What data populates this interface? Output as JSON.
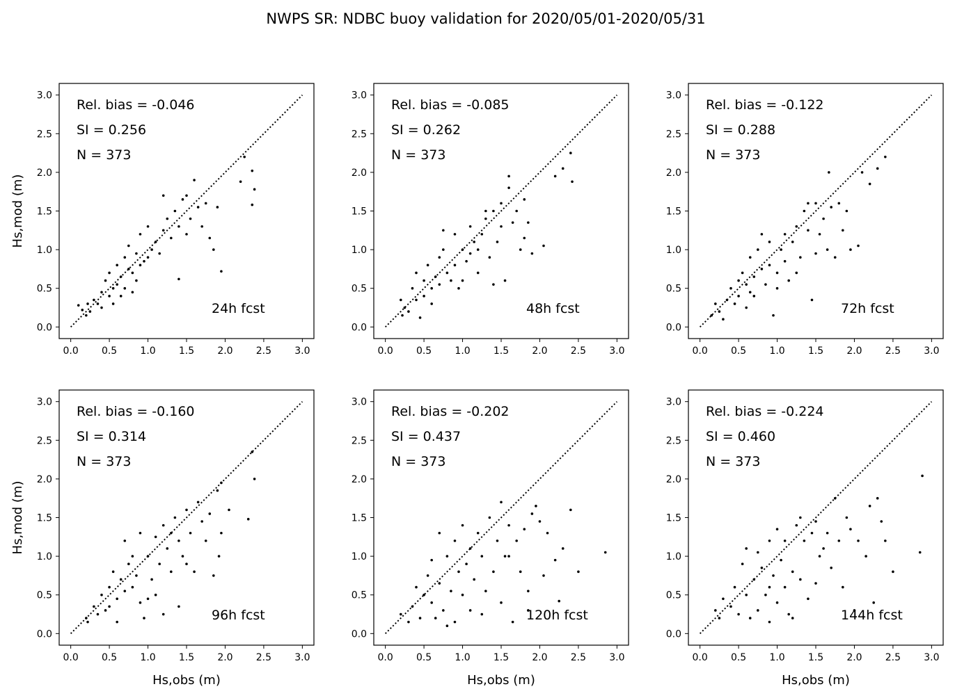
{
  "title": "NWPS SR: NDBC buoy validation for 2020/05/01-2020/05/31",
  "chart_data": [
    {
      "type": "scatter",
      "label": "24h fcst",
      "rel_bias": "Rel. bias = -0.046",
      "si": "SI =  0.256",
      "n": "N = 373",
      "xlabel": "",
      "ylabel": "Hs,mod (m)",
      "xlim": [
        -0.15,
        3.15
      ],
      "ylim": [
        -0.15,
        3.15
      ],
      "points": [
        [
          0.1,
          0.28
        ],
        [
          0.15,
          0.22
        ],
        [
          0.2,
          0.15
        ],
        [
          0.22,
          0.3
        ],
        [
          0.25,
          0.2
        ],
        [
          0.3,
          0.35
        ],
        [
          0.35,
          0.3
        ],
        [
          0.4,
          0.45
        ],
        [
          0.4,
          0.25
        ],
        [
          0.45,
          0.6
        ],
        [
          0.5,
          0.4
        ],
        [
          0.5,
          0.7
        ],
        [
          0.55,
          0.5
        ],
        [
          0.6,
          0.8
        ],
        [
          0.6,
          0.55
        ],
        [
          0.65,
          0.65
        ],
        [
          0.7,
          0.9
        ],
        [
          0.7,
          0.5
        ],
        [
          0.75,
          0.75
        ],
        [
          0.75,
          1.05
        ],
        [
          0.8,
          0.7
        ],
        [
          0.8,
          0.45
        ],
        [
          0.85,
          0.95
        ],
        [
          0.9,
          0.8
        ],
        [
          0.9,
          1.2
        ],
        [
          0.95,
          0.85
        ],
        [
          1.0,
          1.3
        ],
        [
          1.0,
          0.9
        ],
        [
          1.05,
          1.0
        ],
        [
          1.1,
          1.1
        ],
        [
          1.15,
          0.95
        ],
        [
          1.2,
          1.25
        ],
        [
          1.25,
          1.4
        ],
        [
          1.3,
          1.15
        ],
        [
          1.35,
          1.5
        ],
        [
          1.4,
          1.3
        ],
        [
          1.4,
          0.62
        ],
        [
          1.5,
          1.7
        ],
        [
          1.55,
          1.4
        ],
        [
          1.6,
          1.9
        ],
        [
          1.65,
          1.55
        ],
        [
          1.7,
          1.3
        ],
        [
          1.75,
          1.6
        ],
        [
          1.8,
          1.15
        ],
        [
          1.85,
          1.0
        ],
        [
          1.9,
          1.55
        ],
        [
          1.95,
          0.72
        ],
        [
          2.2,
          1.88
        ],
        [
          2.25,
          2.2
        ],
        [
          2.35,
          2.02
        ],
        [
          2.38,
          1.78
        ],
        [
          2.35,
          1.58
        ],
        [
          0.55,
          0.3
        ],
        [
          0.65,
          0.4
        ],
        [
          0.85,
          0.6
        ],
        [
          1.2,
          1.7
        ],
        [
          1.5,
          1.2
        ],
        [
          1.45,
          1.65
        ]
      ]
    },
    {
      "type": "scatter",
      "label": "48h fcst",
      "rel_bias": "Rel. bias = -0.085",
      "si": "SI =  0.262",
      "n": "N = 373",
      "xlabel": "",
      "ylabel": "",
      "xlim": [
        -0.15,
        3.15
      ],
      "ylim": [
        -0.15,
        3.15
      ],
      "points": [
        [
          0.2,
          0.35
        ],
        [
          0.22,
          0.15
        ],
        [
          0.25,
          0.25
        ],
        [
          0.3,
          0.2
        ],
        [
          0.35,
          0.5
        ],
        [
          0.4,
          0.35
        ],
        [
          0.4,
          0.7
        ],
        [
          0.45,
          0.12
        ],
        [
          0.5,
          0.6
        ],
        [
          0.5,
          0.4
        ],
        [
          0.55,
          0.8
        ],
        [
          0.6,
          0.5
        ],
        [
          0.6,
          0.3
        ],
        [
          0.65,
          0.65
        ],
        [
          0.7,
          0.9
        ],
        [
          0.7,
          0.55
        ],
        [
          0.75,
          1.0
        ],
        [
          0.8,
          0.7
        ],
        [
          0.85,
          0.6
        ],
        [
          0.9,
          1.2
        ],
        [
          0.9,
          0.8
        ],
        [
          0.95,
          0.5
        ],
        [
          1.0,
          1.0
        ],
        [
          1.05,
          0.85
        ],
        [
          1.1,
          1.3
        ],
        [
          1.1,
          0.95
        ],
        [
          1.15,
          1.1
        ],
        [
          1.2,
          0.7
        ],
        [
          1.25,
          1.2
        ],
        [
          1.3,
          1.4
        ],
        [
          1.35,
          0.9
        ],
        [
          1.4,
          1.5
        ],
        [
          1.45,
          1.1
        ],
        [
          1.5,
          1.6
        ],
        [
          1.5,
          1.3
        ],
        [
          1.55,
          0.6
        ],
        [
          1.6,
          1.8
        ],
        [
          1.65,
          1.35
        ],
        [
          1.7,
          1.5
        ],
        [
          1.75,
          1.0
        ],
        [
          1.8,
          1.65
        ],
        [
          1.85,
          1.35
        ],
        [
          1.9,
          0.95
        ],
        [
          2.05,
          1.05
        ],
        [
          2.2,
          1.95
        ],
        [
          2.3,
          2.05
        ],
        [
          2.4,
          2.25
        ],
        [
          2.42,
          1.88
        ],
        [
          1.4,
          0.55
        ],
        [
          0.75,
          1.25
        ],
        [
          1.0,
          0.6
        ],
        [
          1.2,
          1.0
        ],
        [
          1.3,
          1.5
        ],
        [
          1.6,
          1.95
        ],
        [
          1.8,
          1.15
        ]
      ]
    },
    {
      "type": "scatter",
      "label": "72h fcst",
      "rel_bias": "Rel. bias = -0.122",
      "si": "SI =  0.288",
      "n": "N = 373",
      "xlabel": "",
      "ylabel": "",
      "xlim": [
        -0.15,
        3.15
      ],
      "ylim": [
        -0.15,
        3.15
      ],
      "points": [
        [
          0.15,
          0.15
        ],
        [
          0.2,
          0.3
        ],
        [
          0.25,
          0.2
        ],
        [
          0.3,
          0.1
        ],
        [
          0.35,
          0.35
        ],
        [
          0.4,
          0.5
        ],
        [
          0.45,
          0.3
        ],
        [
          0.5,
          0.6
        ],
        [
          0.5,
          0.4
        ],
        [
          0.55,
          0.7
        ],
        [
          0.6,
          0.55
        ],
        [
          0.6,
          0.25
        ],
        [
          0.65,
          0.9
        ],
        [
          0.7,
          0.65
        ],
        [
          0.7,
          0.4
        ],
        [
          0.75,
          1.0
        ],
        [
          0.8,
          0.75
        ],
        [
          0.85,
          0.55
        ],
        [
          0.9,
          1.1
        ],
        [
          0.9,
          0.8
        ],
        [
          0.95,
          0.15
        ],
        [
          1.0,
          0.7
        ],
        [
          1.05,
          1.0
        ],
        [
          1.1,
          0.85
        ],
        [
          1.1,
          1.2
        ],
        [
          1.15,
          0.6
        ],
        [
          1.2,
          1.1
        ],
        [
          1.25,
          1.3
        ],
        [
          1.3,
          0.9
        ],
        [
          1.35,
          1.5
        ],
        [
          1.4,
          1.25
        ],
        [
          1.45,
          0.35
        ],
        [
          1.5,
          1.6
        ],
        [
          1.55,
          1.2
        ],
        [
          1.6,
          1.4
        ],
        [
          1.65,
          1.0
        ],
        [
          1.7,
          1.55
        ],
        [
          1.75,
          0.9
        ],
        [
          1.8,
          1.6
        ],
        [
          1.85,
          1.25
        ],
        [
          1.9,
          1.5
        ],
        [
          1.95,
          1.0
        ],
        [
          2.05,
          1.05
        ],
        [
          2.1,
          2.0
        ],
        [
          2.2,
          1.85
        ],
        [
          2.3,
          2.05
        ],
        [
          2.4,
          2.2
        ],
        [
          1.67,
          2.0
        ],
        [
          1.5,
          0.95
        ],
        [
          0.8,
          1.2
        ],
        [
          1.0,
          0.5
        ],
        [
          1.25,
          0.7
        ],
        [
          1.4,
          1.6
        ],
        [
          0.65,
          0.45
        ]
      ]
    },
    {
      "type": "scatter",
      "label": "96h fcst",
      "rel_bias": "Rel. bias = -0.160",
      "si": "SI =  0.314",
      "n": "N = 373",
      "xlabel": "Hs,obs (m)",
      "ylabel": "Hs,mod (m)",
      "xlim": [
        -0.15,
        3.15
      ],
      "ylim": [
        -0.15,
        3.15
      ],
      "points": [
        [
          0.2,
          0.2
        ],
        [
          0.22,
          0.15
        ],
        [
          0.3,
          0.35
        ],
        [
          0.35,
          0.25
        ],
        [
          0.4,
          0.5
        ],
        [
          0.45,
          0.3
        ],
        [
          0.5,
          0.6
        ],
        [
          0.5,
          0.35
        ],
        [
          0.55,
          0.8
        ],
        [
          0.6,
          0.45
        ],
        [
          0.6,
          0.15
        ],
        [
          0.65,
          0.7
        ],
        [
          0.7,
          1.2
        ],
        [
          0.7,
          0.55
        ],
        [
          0.75,
          0.9
        ],
        [
          0.8,
          0.6
        ],
        [
          0.85,
          0.75
        ],
        [
          0.9,
          1.3
        ],
        [
          0.9,
          0.4
        ],
        [
          0.95,
          0.2
        ],
        [
          1.0,
          1.0
        ],
        [
          1.05,
          0.7
        ],
        [
          1.1,
          1.25
        ],
        [
          1.1,
          0.5
        ],
        [
          1.15,
          0.9
        ],
        [
          1.2,
          1.4
        ],
        [
          1.25,
          1.1
        ],
        [
          1.3,
          0.8
        ],
        [
          1.35,
          1.5
        ],
        [
          1.4,
          1.2
        ],
        [
          1.4,
          0.35
        ],
        [
          1.45,
          1.0
        ],
        [
          1.5,
          1.6
        ],
        [
          1.55,
          1.3
        ],
        [
          1.6,
          0.8
        ],
        [
          1.65,
          1.7
        ],
        [
          1.7,
          1.45
        ],
        [
          1.75,
          1.2
        ],
        [
          1.8,
          1.55
        ],
        [
          1.85,
          0.75
        ],
        [
          1.9,
          1.85
        ],
        [
          1.92,
          1.0
        ],
        [
          1.95,
          1.3
        ],
        [
          2.05,
          1.6
        ],
        [
          2.3,
          1.48
        ],
        [
          2.35,
          2.35
        ],
        [
          2.38,
          2.0
        ],
        [
          1.2,
          0.25
        ],
        [
          0.8,
          1.0
        ],
        [
          1.0,
          0.45
        ],
        [
          1.3,
          1.3
        ],
        [
          1.5,
          0.9
        ],
        [
          1.95,
          1.95
        ]
      ]
    },
    {
      "type": "scatter",
      "label": "120h fcst",
      "rel_bias": "Rel. bias = -0.202",
      "si": "SI =  0.437",
      "n": "N = 373",
      "xlabel": "Hs,obs (m)",
      "ylabel": "",
      "xlim": [
        -0.15,
        3.15
      ],
      "ylim": [
        -0.15,
        3.15
      ],
      "points": [
        [
          0.2,
          0.25
        ],
        [
          0.3,
          0.15
        ],
        [
          0.35,
          0.35
        ],
        [
          0.4,
          0.6
        ],
        [
          0.45,
          0.2
        ],
        [
          0.5,
          0.5
        ],
        [
          0.55,
          0.75
        ],
        [
          0.6,
          0.4
        ],
        [
          0.6,
          0.95
        ],
        [
          0.65,
          0.2
        ],
        [
          0.7,
          1.3
        ],
        [
          0.7,
          0.65
        ],
        [
          0.75,
          0.3
        ],
        [
          0.8,
          1.0
        ],
        [
          0.85,
          0.55
        ],
        [
          0.9,
          1.2
        ],
        [
          0.9,
          0.15
        ],
        [
          0.95,
          0.8
        ],
        [
          1.0,
          1.4
        ],
        [
          1.0,
          0.5
        ],
        [
          1.05,
          0.9
        ],
        [
          1.1,
          1.1
        ],
        [
          1.1,
          0.3
        ],
        [
          1.15,
          0.7
        ],
        [
          1.2,
          1.3
        ],
        [
          1.25,
          1.0
        ],
        [
          1.3,
          0.55
        ],
        [
          1.35,
          1.5
        ],
        [
          1.4,
          0.8
        ],
        [
          1.45,
          1.2
        ],
        [
          1.5,
          1.7
        ],
        [
          1.5,
          0.4
        ],
        [
          1.55,
          1.0
        ],
        [
          1.6,
          1.4
        ],
        [
          1.65,
          0.15
        ],
        [
          1.7,
          1.2
        ],
        [
          1.75,
          0.8
        ],
        [
          1.8,
          1.35
        ],
        [
          1.85,
          0.55
        ],
        [
          1.9,
          1.55
        ],
        [
          1.95,
          1.65
        ],
        [
          2.0,
          1.45
        ],
        [
          2.05,
          0.75
        ],
        [
          2.2,
          0.95
        ],
        [
          2.25,
          0.42
        ],
        [
          2.3,
          1.1
        ],
        [
          2.4,
          1.6
        ],
        [
          2.5,
          0.8
        ],
        [
          2.85,
          1.05
        ],
        [
          1.85,
          0.3
        ],
        [
          1.25,
          0.25
        ],
        [
          0.8,
          0.1
        ],
        [
          1.6,
          1.0
        ],
        [
          2.1,
          1.3
        ]
      ]
    },
    {
      "type": "scatter",
      "label": "144h fcst",
      "rel_bias": "Rel. bias = -0.224",
      "si": "SI =  0.460",
      "n": "N = 373",
      "xlabel": "Hs,obs (m)",
      "ylabel": "",
      "xlim": [
        -0.15,
        3.15
      ],
      "ylim": [
        -0.15,
        3.15
      ],
      "points": [
        [
          0.2,
          0.3
        ],
        [
          0.25,
          0.2
        ],
        [
          0.3,
          0.45
        ],
        [
          0.4,
          0.35
        ],
        [
          0.45,
          0.6
        ],
        [
          0.5,
          0.25
        ],
        [
          0.55,
          0.9
        ],
        [
          0.6,
          0.5
        ],
        [
          0.6,
          1.1
        ],
        [
          0.65,
          0.2
        ],
        [
          0.7,
          0.7
        ],
        [
          0.75,
          1.05
        ],
        [
          0.75,
          0.3
        ],
        [
          0.8,
          0.85
        ],
        [
          0.85,
          0.5
        ],
        [
          0.9,
          1.2
        ],
        [
          0.9,
          0.15
        ],
        [
          0.95,
          0.75
        ],
        [
          1.0,
          1.35
        ],
        [
          1.0,
          0.4
        ],
        [
          1.05,
          0.95
        ],
        [
          1.1,
          0.6
        ],
        [
          1.1,
          1.2
        ],
        [
          1.15,
          0.25
        ],
        [
          1.2,
          0.8
        ],
        [
          1.25,
          1.4
        ],
        [
          1.3,
          0.7
        ],
        [
          1.35,
          1.2
        ],
        [
          1.4,
          0.45
        ],
        [
          1.45,
          1.3
        ],
        [
          1.5,
          1.45
        ],
        [
          1.55,
          1.0
        ],
        [
          1.6,
          1.1
        ],
        [
          1.65,
          1.3
        ],
        [
          1.7,
          0.85
        ],
        [
          1.75,
          1.75
        ],
        [
          1.8,
          1.2
        ],
        [
          1.85,
          0.6
        ],
        [
          1.9,
          1.5
        ],
        [
          1.95,
          1.35
        ],
        [
          2.0,
          0.3
        ],
        [
          2.05,
          1.2
        ],
        [
          2.15,
          1.0
        ],
        [
          2.2,
          1.65
        ],
        [
          2.25,
          0.4
        ],
        [
          2.3,
          1.75
        ],
        [
          2.35,
          1.45
        ],
        [
          2.4,
          1.2
        ],
        [
          2.5,
          0.8
        ],
        [
          2.85,
          1.05
        ],
        [
          2.88,
          2.04
        ],
        [
          1.3,
          1.5
        ],
        [
          0.9,
          0.6
        ],
        [
          1.2,
          0.2
        ],
        [
          1.5,
          0.65
        ]
      ]
    }
  ]
}
